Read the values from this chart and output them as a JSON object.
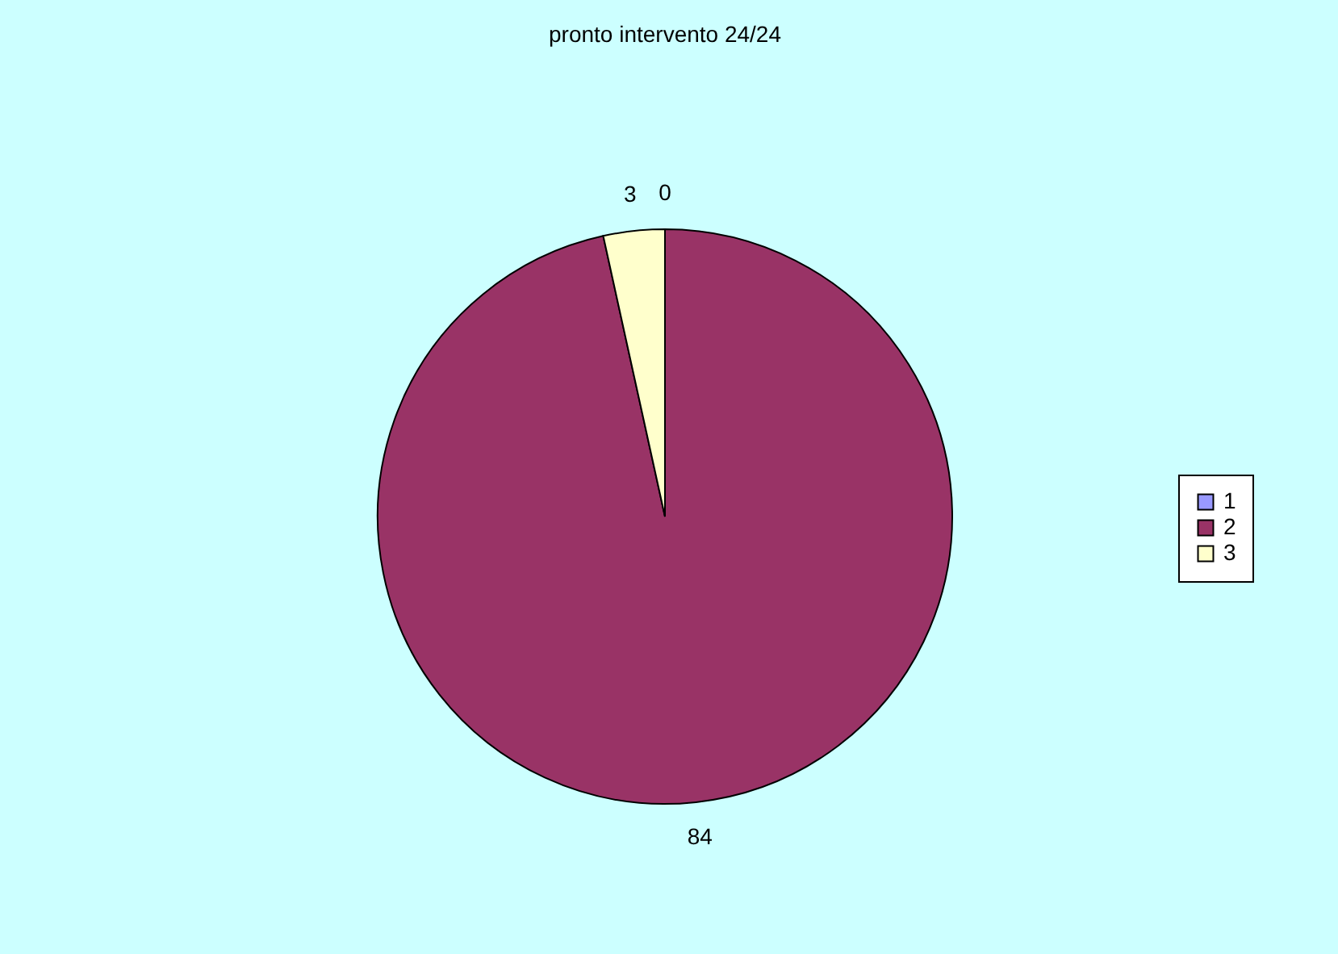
{
  "chart_data": {
    "type": "pie",
    "title": "pronto intervento 24/24",
    "categories": [
      "1",
      "2",
      "3"
    ],
    "values": [
      0,
      84,
      3
    ],
    "colors": [
      "#9999ff",
      "#993366",
      "#ffffcc"
    ],
    "value_labels": [
      "0",
      "84",
      "3"
    ],
    "legend": "right"
  }
}
